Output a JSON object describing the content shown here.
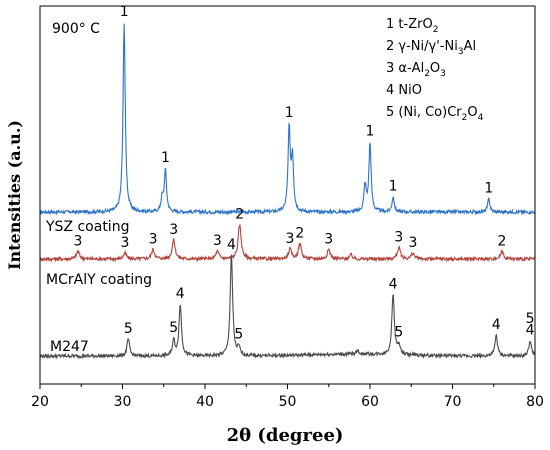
{
  "chart_data": {
    "type": "line",
    "title": "",
    "xlabel": "2θ (degree)",
    "ylabel": "Intensities (a.u.)",
    "xlim": [
      20,
      80
    ],
    "xticks": [
      20,
      30,
      40,
      50,
      60,
      70,
      80
    ],
    "y_ticks_shown": false,
    "grid": false,
    "temperature_label": "900° C",
    "legend": {
      "placement": "top-right",
      "entries": [
        {
          "num": "1",
          "pre": "t-ZrO",
          "sub": "2",
          "post": ""
        },
        {
          "num": "2",
          "pre": "γ-Ni/γ'-Ni",
          "sub": "3",
          "post": "Al"
        },
        {
          "num": "3",
          "pre": "α-Al",
          "sub": "2",
          "post": "O",
          "sub2": "3"
        },
        {
          "num": "4",
          "pre": "NiO",
          "sub": "",
          "post": ""
        },
        {
          "num": "5",
          "pre": "(Ni, Co)Cr",
          "sub": "2",
          "post": "O",
          "sub2": "4"
        }
      ]
    },
    "series": [
      {
        "name": "900° C",
        "color": "#2a73c8",
        "peaks": [
          {
            "x": 30.2,
            "h": 1.0,
            "label": "1"
          },
          {
            "x": 34.8,
            "h": 0.07,
            "label": ""
          },
          {
            "x": 35.2,
            "h": 0.22,
            "label": "1"
          },
          {
            "x": 50.2,
            "h": 0.43,
            "label": "1"
          },
          {
            "x": 50.6,
            "h": 0.28,
            "label": ""
          },
          {
            "x": 59.4,
            "h": 0.14,
            "label": ""
          },
          {
            "x": 60.0,
            "h": 0.36,
            "label": "1"
          },
          {
            "x": 62.8,
            "h": 0.08,
            "label": "1"
          },
          {
            "x": 74.4,
            "h": 0.07,
            "label": "1"
          }
        ]
      },
      {
        "name": "YSZ coating",
        "color": "#b3443c",
        "peaks": [
          {
            "x": 24.6,
            "h": 0.04,
            "label": "3"
          },
          {
            "x": 30.3,
            "h": 0.03,
            "label": "3"
          },
          {
            "x": 33.7,
            "h": 0.05,
            "label": "3"
          },
          {
            "x": 36.2,
            "h": 0.1,
            "label": "3"
          },
          {
            "x": 41.5,
            "h": 0.04,
            "label": "3"
          },
          {
            "x": 44.2,
            "h": 0.18,
            "label": "2"
          },
          {
            "x": 50.3,
            "h": 0.05,
            "label": "3"
          },
          {
            "x": 51.5,
            "h": 0.08,
            "label": "2"
          },
          {
            "x": 55.0,
            "h": 0.05,
            "label": "3"
          },
          {
            "x": 57.7,
            "h": 0.02,
            "label": ""
          },
          {
            "x": 63.5,
            "h": 0.06,
            "label": "3"
          },
          {
            "x": 65.2,
            "h": 0.03,
            "label": "3"
          },
          {
            "x": 76.0,
            "h": 0.04,
            "label": "2"
          }
        ]
      },
      {
        "name": "MCrAlY coating",
        "color": "#4a4a4a",
        "peaks": [
          {
            "x": 30.7,
            "h": 0.09,
            "label": "5"
          },
          {
            "x": 36.2,
            "h": 0.08,
            "label": "5"
          },
          {
            "x": 37.0,
            "h": 0.27,
            "label": "4"
          },
          {
            "x": 43.2,
            "h": 0.53,
            "label": "4"
          },
          {
            "x": 44.1,
            "h": 0.04,
            "label": "5"
          },
          {
            "x": 58.5,
            "h": 0.02,
            "label": ""
          },
          {
            "x": 62.8,
            "h": 0.32,
            "label": "4"
          },
          {
            "x": 63.5,
            "h": 0.05,
            "label": "5"
          },
          {
            "x": 75.3,
            "h": 0.11,
            "label": "4"
          },
          {
            "x": 79.4,
            "h": 0.08,
            "label": "4"
          }
        ]
      }
    ],
    "extra_labels": [
      {
        "text": "M247",
        "series_index": 2
      },
      {
        "text": "5",
        "series_index": 2,
        "x": 79.4
      }
    ]
  }
}
